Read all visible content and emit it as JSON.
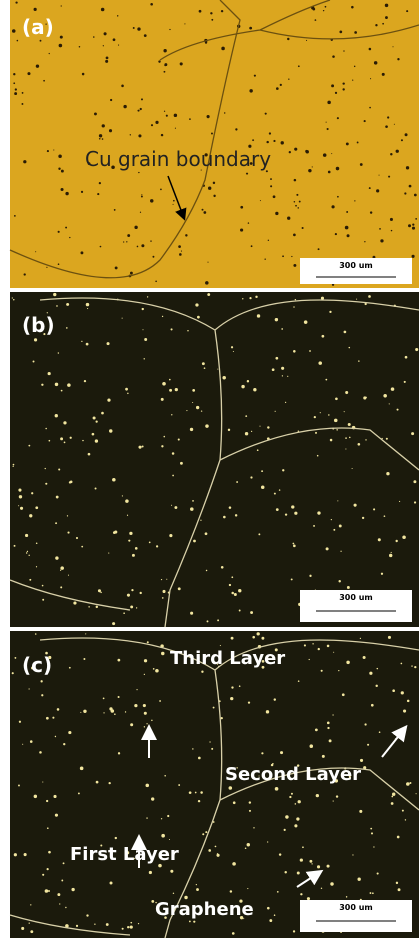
{
  "panels": [
    {
      "label": "(a)",
      "annotation": "Cu grain boundary",
      "scale_bar": "300 um"
    },
    {
      "label": "(b)",
      "scale_bar": "300 um"
    },
    {
      "label": "(c)",
      "scale_bar": "300 um",
      "annotations": [
        "Third Layer",
        "Second Layer",
        "First Layer",
        "Graphene"
      ]
    }
  ]
}
